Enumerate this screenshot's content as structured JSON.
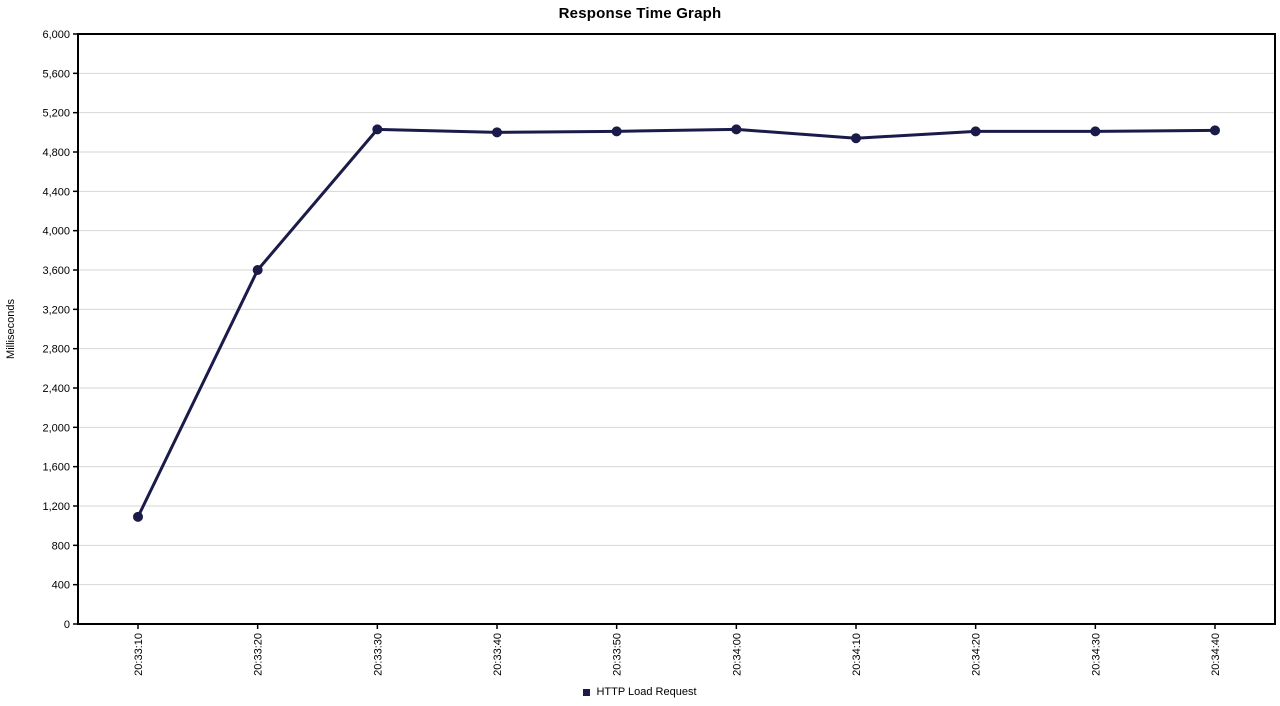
{
  "chart_data": {
    "type": "line",
    "title": "Response Time Graph",
    "xlabel": "",
    "ylabel": "Milliseconds",
    "categories": [
      "20:33:10",
      "20:33:20",
      "20:33:30",
      "20:33:40",
      "20:33:50",
      "20:34:00",
      "20:34:10",
      "20:34:20",
      "20:34:30",
      "20:34:40"
    ],
    "series": [
      {
        "name": "HTTP Load Request",
        "color": "#1b1b4a",
        "values": [
          1090,
          3600,
          5030,
          5000,
          5010,
          5030,
          4940,
          5010,
          5010,
          5020
        ]
      }
    ],
    "ylim": [
      0,
      6000
    ],
    "y_tick_step": 400,
    "grid": "horizontal-only",
    "grid_color": "#d6d6d6",
    "axis_color": "#000000",
    "text_color": "#000000",
    "background_color": "#ffffff",
    "legend_position": "bottom-center",
    "x_label_rotation_deg": -90
  }
}
